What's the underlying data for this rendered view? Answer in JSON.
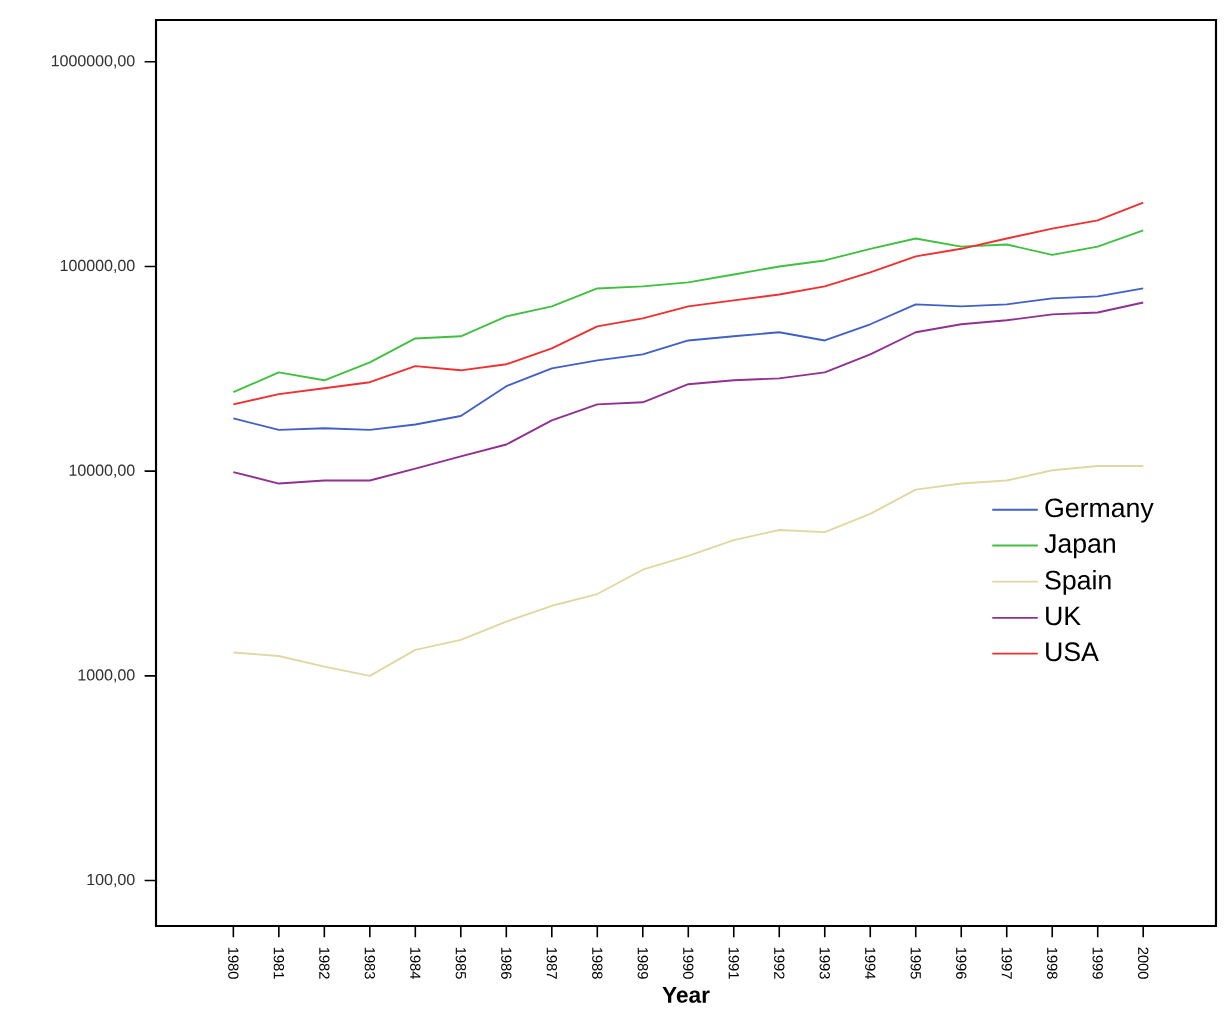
{
  "chart_data": {
    "type": "line",
    "xlabel": "Year",
    "log": "y",
    "grid": false,
    "legend": "right",
    "marker": "none",
    "line_style": "solid",
    "categories": [
      "1980",
      "1981",
      "1982",
      "1983",
      "1984",
      "1985",
      "1986",
      "1987",
      "1988",
      "1989",
      "1990",
      "1991",
      "1992",
      "1993",
      "1994",
      "1995",
      "1996",
      "1997",
      "1998",
      "1999",
      "2000"
    ],
    "ylim": [
      60,
      1600000
    ],
    "yticks": [
      {
        "value": 100,
        "label": "100,00"
      },
      {
        "value": 1000,
        "label": "1000,00"
      },
      {
        "value": 10000,
        "label": "10000,00"
      },
      {
        "value": 100000,
        "label": "100000,00"
      },
      {
        "value": 1000000,
        "label": "1000000,00"
      }
    ],
    "series": [
      {
        "name": "Germany",
        "color": "#4060c8",
        "values": [
          18100,
          15900,
          16200,
          15900,
          16900,
          18600,
          26000,
          31800,
          34800,
          37200,
          43500,
          45600,
          47700,
          43500,
          52200,
          65300,
          63800,
          65300,
          69800,
          71400,
          78100
        ]
      },
      {
        "name": "Japan",
        "color": "#40c040",
        "values": [
          24300,
          30400,
          27800,
          34000,
          44500,
          45600,
          57000,
          63800,
          78100,
          79900,
          83600,
          91400,
          100000,
          107000,
          122000,
          137000,
          125000,
          128000,
          114000,
          125000,
          150000
        ]
      },
      {
        "name": "Spain",
        "color": "#e0d8a0",
        "values": [
          1300,
          1250,
          1110,
          1000,
          1340,
          1500,
          1840,
          2200,
          2510,
          3300,
          3860,
          4600,
          5160,
          5040,
          6190,
          8120,
          8700,
          9000,
          10100,
          10600,
          10600
        ]
      },
      {
        "name": "UK",
        "color": "#903090",
        "values": [
          9900,
          8700,
          9000,
          9000,
          10300,
          11800,
          13500,
          17700,
          21200,
          21700,
          26600,
          27800,
          28400,
          30400,
          37200,
          47700,
          52200,
          54600,
          58300,
          59600,
          66700
        ]
      },
      {
        "name": "USA",
        "color": "#f03030",
        "values": [
          21200,
          23800,
          25400,
          27200,
          32600,
          31100,
          33300,
          39800,
          51000,
          55800,
          63800,
          68300,
          73000,
          79900,
          93500,
          112000,
          122000,
          137000,
          153000,
          168000,
          205000
        ]
      }
    ]
  }
}
